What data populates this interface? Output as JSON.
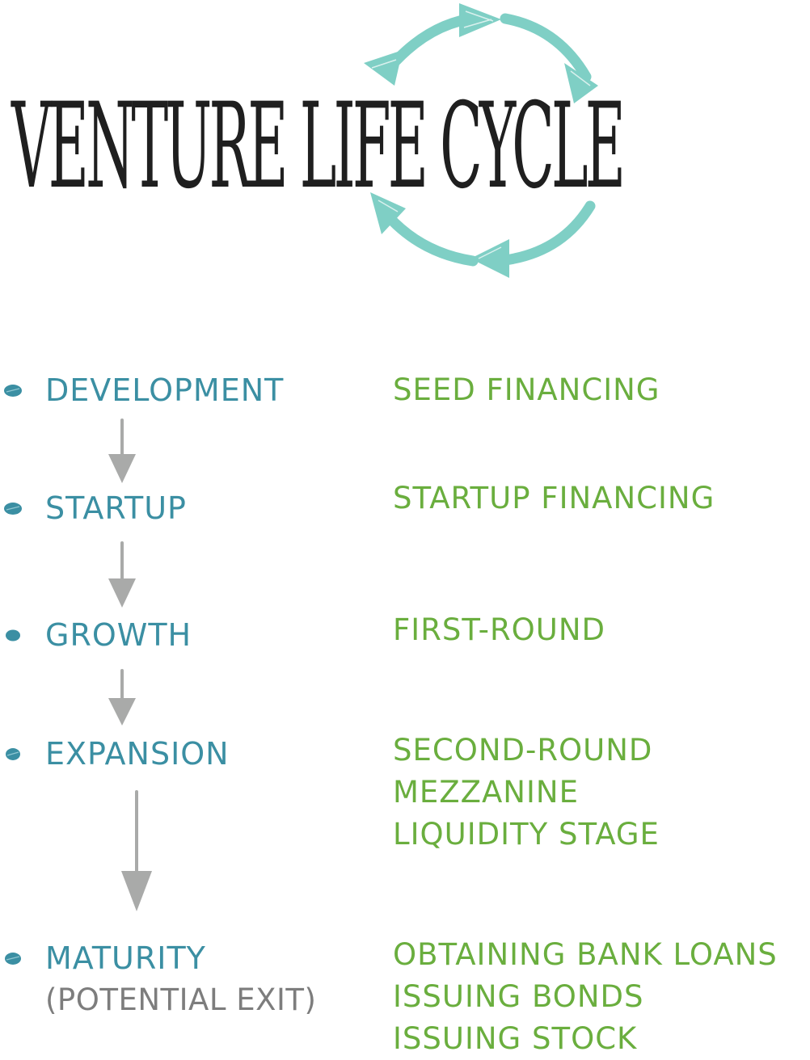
{
  "title": "VENTURE LIFE CYCLE",
  "colors": {
    "title": "#1f1f1f",
    "cycle": "#7fcfc5",
    "stage": "#3b8fa3",
    "financing": "#6aae3e",
    "arrow": "#a9aaa9",
    "subtext": "#7d7d7d"
  },
  "icons": {
    "cycle": "circular-arrows-icon",
    "bullet": "bullet-dot-icon",
    "arrow": "down-arrow-icon"
  },
  "stages": [
    {
      "name": "DEVELOPMENT",
      "sub": "",
      "financing": [
        "SEED FINANCING"
      ]
    },
    {
      "name": "STARTUP",
      "sub": "",
      "financing": [
        "STARTUP FINANCING"
      ]
    },
    {
      "name": "GROWTH",
      "sub": "",
      "financing": [
        "FIRST-ROUND"
      ]
    },
    {
      "name": "EXPANSION",
      "sub": "",
      "financing": [
        "SECOND-ROUND",
        "MEZZANINE",
        "LIQUIDITY STAGE"
      ]
    },
    {
      "name": "MATURITY",
      "sub": "(POTENTIAL EXIT)",
      "financing": [
        "OBTAINING BANK LOANS",
        "ISSUING BONDS",
        "ISSUING STOCK"
      ]
    }
  ]
}
